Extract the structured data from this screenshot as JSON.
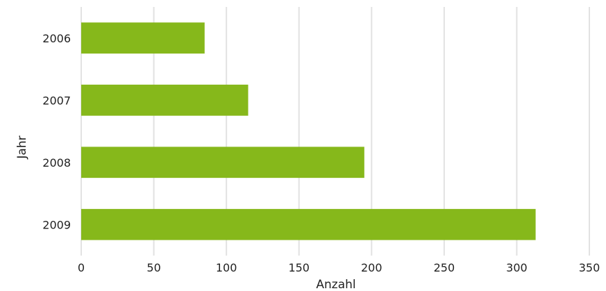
{
  "chart_data": {
    "type": "bar",
    "orientation": "horizontal",
    "categories": [
      "2006",
      "2007",
      "2008",
      "2009"
    ],
    "values": [
      85,
      115,
      195,
      313
    ],
    "xlabel": "Anzahl",
    "ylabel": "Jahr",
    "xlim": [
      0,
      350
    ],
    "xticks": [
      0,
      50,
      100,
      150,
      200,
      250,
      300,
      350
    ],
    "grid": "vertical",
    "bar_color": "#86b81b",
    "grid_color": "#e2e2e2"
  }
}
